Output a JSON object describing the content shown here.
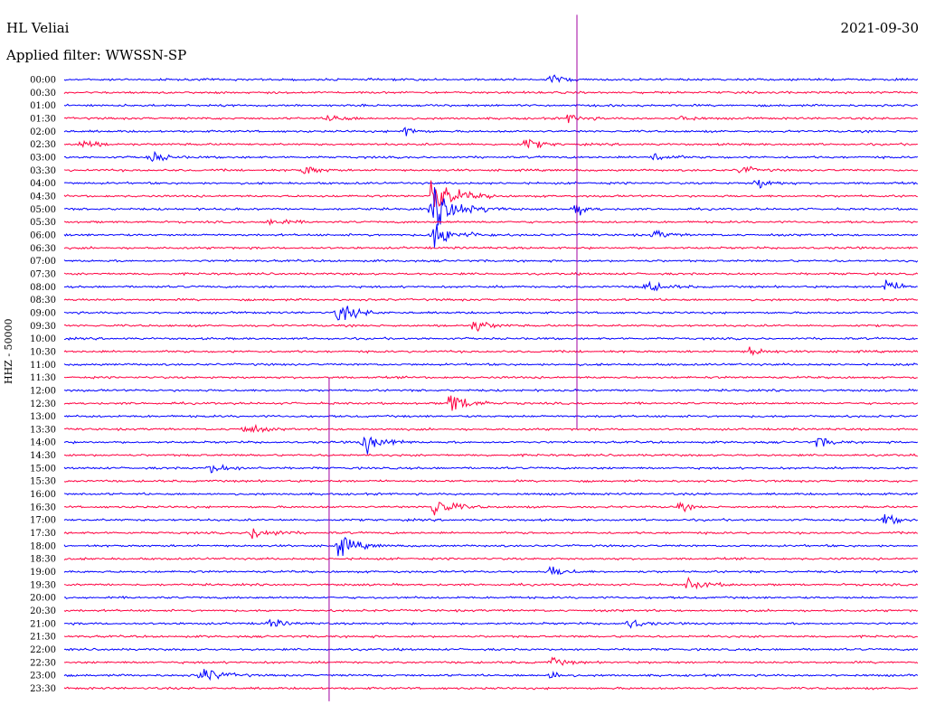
{
  "header": {
    "station": "HL Veliai",
    "date": "2021-09-30",
    "filter": "Applied filter: WWSSN-SP"
  },
  "chart_data": {
    "type": "line",
    "title": "HL Veliai",
    "ylabel": "HHZ - 50000",
    "colors": {
      "even": "#0000ff",
      "odd": "#ff0040",
      "spike": "#a000a0"
    },
    "rows": [
      "00:00",
      "00:30",
      "01:00",
      "01:30",
      "02:00",
      "02:30",
      "03:00",
      "03:30",
      "04:00",
      "04:30",
      "05:00",
      "05:30",
      "06:00",
      "06:30",
      "07:00",
      "07:30",
      "08:00",
      "08:30",
      "09:00",
      "09:30",
      "10:00",
      "10:30",
      "11:00",
      "11:30",
      "12:00",
      "12:30",
      "13:00",
      "13:30",
      "14:00",
      "14:30",
      "15:00",
      "15:30",
      "16:00",
      "16:30",
      "17:00",
      "17:30",
      "18:00",
      "18:30",
      "19:00",
      "19:30",
      "20:00",
      "20:30",
      "21:00",
      "21:30",
      "22:00",
      "22:30",
      "23:00",
      "23:30"
    ],
    "events": [
      {
        "row": 0,
        "x": 0.57,
        "amp": 1.2,
        "w": 0.03
      },
      {
        "row": 3,
        "x": 0.31,
        "amp": 1.0,
        "w": 0.03
      },
      {
        "row": 3,
        "x": 0.59,
        "amp": 1.0,
        "w": 0.03
      },
      {
        "row": 3,
        "x": 0.72,
        "amp": 1.4,
        "w": 0.02
      },
      {
        "row": 4,
        "x": 0.4,
        "amp": 1.4,
        "w": 0.02
      },
      {
        "row": 5,
        "x": 0.02,
        "amp": 1.2,
        "w": 0.03
      },
      {
        "row": 5,
        "x": 0.54,
        "amp": 1.4,
        "w": 0.03
      },
      {
        "row": 6,
        "x": 0.1,
        "amp": 1.4,
        "w": 0.03
      },
      {
        "row": 6,
        "x": 0.69,
        "amp": 1.2,
        "w": 0.03
      },
      {
        "row": 7,
        "x": 0.28,
        "amp": 1.2,
        "w": 0.03
      },
      {
        "row": 7,
        "x": 0.79,
        "amp": 1.0,
        "w": 0.03
      },
      {
        "row": 8,
        "x": 0.81,
        "amp": 1.4,
        "w": 0.03
      },
      {
        "row": 9,
        "x": 0.43,
        "amp": 4.0,
        "w": 0.05
      },
      {
        "row": 10,
        "x": 0.43,
        "amp": 4.0,
        "w": 0.06
      },
      {
        "row": 10,
        "x": 0.6,
        "amp": 1.8,
        "w": 0.02
      },
      {
        "row": 11,
        "x": 0.24,
        "amp": 1.2,
        "w": 0.03
      },
      {
        "row": 12,
        "x": 0.43,
        "amp": 3.0,
        "w": 0.05
      },
      {
        "row": 12,
        "x": 0.69,
        "amp": 1.0,
        "w": 0.03
      },
      {
        "row": 16,
        "x": 0.68,
        "amp": 1.2,
        "w": 0.04
      },
      {
        "row": 16,
        "x": 0.96,
        "amp": 1.6,
        "w": 0.03
      },
      {
        "row": 18,
        "x": 0.32,
        "amp": 2.0,
        "w": 0.04
      },
      {
        "row": 19,
        "x": 0.48,
        "amp": 1.6,
        "w": 0.03
      },
      {
        "row": 21,
        "x": 0.8,
        "amp": 1.2,
        "w": 0.03
      },
      {
        "row": 25,
        "x": 0.45,
        "amp": 2.6,
        "w": 0.04
      },
      {
        "row": 27,
        "x": 0.21,
        "amp": 1.4,
        "w": 0.03
      },
      {
        "row": 28,
        "x": 0.35,
        "amp": 2.4,
        "w": 0.04
      },
      {
        "row": 28,
        "x": 0.88,
        "amp": 1.2,
        "w": 0.03
      },
      {
        "row": 30,
        "x": 0.17,
        "amp": 1.0,
        "w": 0.04
      },
      {
        "row": 33,
        "x": 0.43,
        "amp": 2.6,
        "w": 0.04
      },
      {
        "row": 33,
        "x": 0.72,
        "amp": 1.0,
        "w": 0.02
      },
      {
        "row": 34,
        "x": 0.96,
        "amp": 1.2,
        "w": 0.03
      },
      {
        "row": 35,
        "x": 0.22,
        "amp": 1.6,
        "w": 0.04
      },
      {
        "row": 36,
        "x": 0.32,
        "amp": 2.2,
        "w": 0.04
      },
      {
        "row": 38,
        "x": 0.57,
        "amp": 1.4,
        "w": 0.03
      },
      {
        "row": 39,
        "x": 0.73,
        "amp": 1.2,
        "w": 0.04
      },
      {
        "row": 42,
        "x": 0.24,
        "amp": 1.0,
        "w": 0.03
      },
      {
        "row": 42,
        "x": 0.66,
        "amp": 1.2,
        "w": 0.03
      },
      {
        "row": 45,
        "x": 0.57,
        "amp": 1.0,
        "w": 0.03
      },
      {
        "row": 46,
        "x": 0.16,
        "amp": 1.8,
        "w": 0.04
      },
      {
        "row": 46,
        "x": 0.57,
        "amp": 1.2,
        "w": 0.02
      }
    ],
    "spikes": [
      {
        "x": 0.6,
        "from_row": -5,
        "to_row": 27,
        "amp": 0.6
      },
      {
        "x": 0.31,
        "from_row": 23,
        "to_row": 48,
        "amp": 0.6
      }
    ]
  }
}
